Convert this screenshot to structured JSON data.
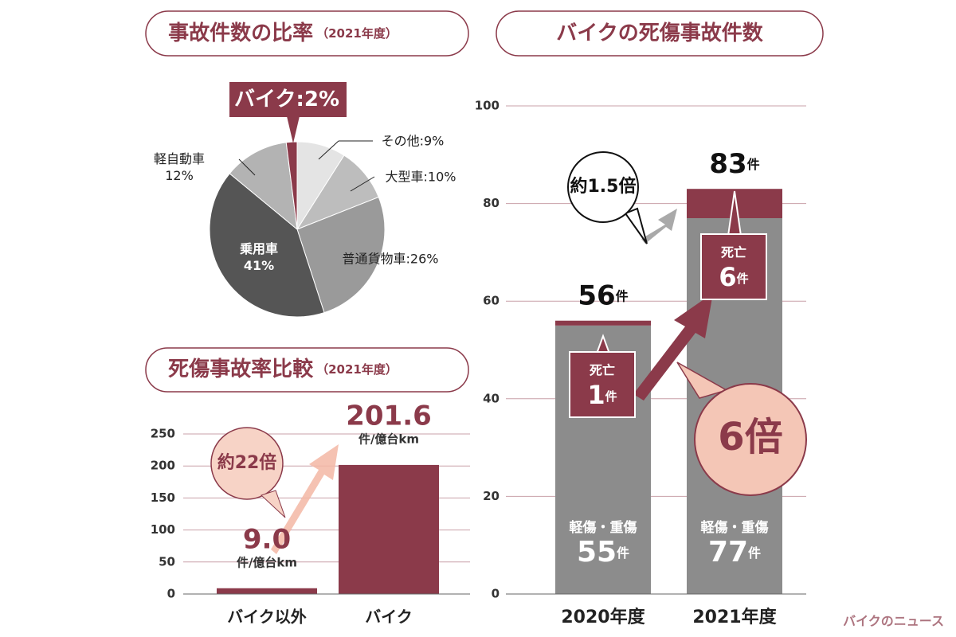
{
  "chart_data": [
    {
      "type": "pie",
      "title": "事故件数の比率",
      "subtitle": "（2021年度）",
      "values": [
        9,
        10,
        26,
        41,
        12,
        2
      ],
      "value_labels": [
        "その他:9%",
        "大型車:10%",
        "普通貨物車:26%",
        "乗用車\n41%",
        "軽自動車\n12%",
        "バイク:2%"
      ],
      "colors": [
        "#e4e4e4",
        "#bdbdbd",
        "#9a9a9a",
        "#555555",
        "#b3b3b3",
        "#8b3a4a"
      ]
    },
    {
      "type": "bar",
      "title": "死傷事故率比較",
      "subtitle": "（2021年度）",
      "categories": [
        "バイク以外",
        "バイク"
      ],
      "values": [
        9.0,
        201.6
      ],
      "value_labels": [
        "9.0",
        "201.6"
      ],
      "value_unit": "件/億台km",
      "color": "#8b3a4a",
      "annotation": "約22倍",
      "ylim": [
        0,
        250
      ],
      "yticks": [
        0,
        50,
        100,
        150,
        200,
        250
      ],
      "grid": true
    },
    {
      "type": "stacked_bar",
      "title": "バイクの死傷事故件数",
      "categories": [
        "2020年度",
        "2021年度"
      ],
      "series": [
        {
          "name": "軽傷・重傷",
          "color": "#8c8c8c",
          "values": [
            55,
            77
          ]
        },
        {
          "name": "死亡",
          "color": "#8b3a4a",
          "values": [
            1,
            6
          ]
        }
      ],
      "totals": [
        56,
        83
      ],
      "unit": "件",
      "annotations": [
        "約1.5倍",
        "6倍"
      ],
      "ylim": [
        0,
        100
      ],
      "yticks": [
        0,
        20,
        40,
        60,
        80,
        100
      ],
      "grid": true
    }
  ],
  "source": "バイクのニュース"
}
